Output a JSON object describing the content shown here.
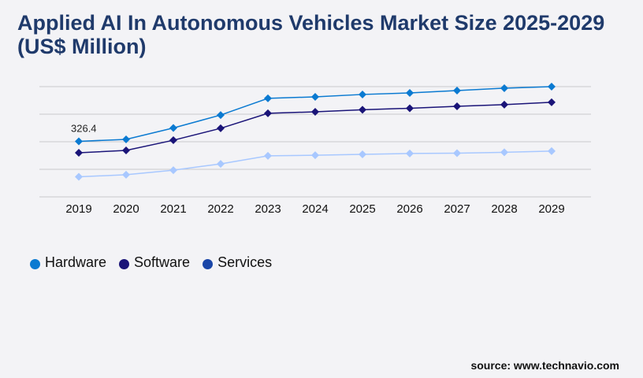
{
  "chart_data": {
    "type": "line",
    "title": "Applied AI In Autonomous Vehicles Market Size 2025-2029 (US$ Million)",
    "categories": [
      "2019",
      "2020",
      "2021",
      "2022",
      "2023",
      "2024",
      "2025",
      "2026",
      "2027",
      "2028",
      "2029"
    ],
    "series": [
      {
        "name": "Hardware",
        "color": "#0a7ad1",
        "line_color": "#0a7ad1",
        "values": [
          326.4,
          338,
          405,
          481,
          579,
          588,
          602,
          611,
          625,
          639,
          648
        ]
      },
      {
        "name": "Software",
        "color": "#1a1478",
        "line_color": "#1a1478",
        "values": [
          259,
          273,
          333,
          403,
          491,
          500,
          512,
          521,
          532,
          542,
          556
        ]
      },
      {
        "name": "Services",
        "color": "#1a46a8",
        "line_color": "#a8c8ff",
        "values": [
          118,
          130,
          157,
          194,
          241,
          245,
          250,
          255,
          257,
          262,
          269
        ]
      }
    ],
    "data_labels": [
      {
        "series": "Hardware",
        "category": "2019",
        "text": "326.4"
      }
    ],
    "ylim": [
      0,
      648
    ],
    "grid": true,
    "legend_placement": "bottom-left"
  },
  "source": "source: www.technavio.com"
}
